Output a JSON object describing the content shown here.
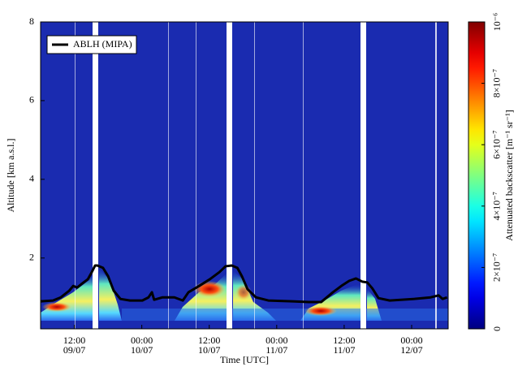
{
  "chart_data": {
    "type": "line",
    "x_label": "Time [UTC]",
    "y_label": "Altitude [km a.s.l.]",
    "colorbar_label": "Attenuated backscatter [m⁻¹ sr⁻¹]",
    "colormap": "jet",
    "clim": [
      0,
      1e-06
    ],
    "cticks": [
      0,
      {
        "value": 2e-07,
        "label": "2×10⁻⁷"
      },
      {
        "value": 4e-07,
        "label": "4×10⁻⁷"
      },
      {
        "value": 6e-07,
        "label": "6×10⁻⁷"
      },
      {
        "value": 8e-07,
        "label": "8×10⁻⁷"
      },
      {
        "value": 1e-06,
        "label": "10⁻⁶"
      }
    ],
    "xlim": [
      6,
      78.5
    ],
    "xticks": [
      {
        "value": 12,
        "label": "12:00\n09/07"
      },
      {
        "value": 24,
        "label": "00:00\n10/07"
      },
      {
        "value": 36,
        "label": "12:00\n10/07"
      },
      {
        "value": 48,
        "label": "00:00\n11/07"
      },
      {
        "value": 60,
        "label": "12:00\n11/07"
      },
      {
        "value": 72,
        "label": "00:00\n12/07"
      }
    ],
    "ylim": [
      0.2,
      8
    ],
    "yticks": [
      2,
      4,
      6,
      8
    ],
    "legend": "upper left",
    "series": [
      {
        "name": "ABLH (MIPA)",
        "color": "#000000",
        "x": [
          6.0,
          8.2,
          9.6,
          11.1,
          11.8,
          12.5,
          13.2,
          14.4,
          15.1,
          15.7,
          16.1,
          17.1,
          18.0,
          19.0,
          20.2,
          21.9,
          24.1,
          25.2,
          25.8,
          26.2,
          27.7,
          29.8,
          31.3,
          32.3,
          34.2,
          36.1,
          37.8,
          38.9,
          40.0,
          41.0,
          41.8,
          42.8,
          44.3,
          46.5,
          50.8,
          53.7,
          55.9,
          58.0,
          59.5,
          60.9,
          62.1,
          63.2,
          64.1,
          65.0,
          66.1,
          68.1,
          72.5,
          75.4,
          76.8,
          77.5,
          78.3
        ],
        "values": [
          0.9,
          0.92,
          1.0,
          1.17,
          1.29,
          1.25,
          1.33,
          1.46,
          1.64,
          1.81,
          1.81,
          1.75,
          1.54,
          1.17,
          0.96,
          0.92,
          0.92,
          1.0,
          1.13,
          0.94,
          1.0,
          1.0,
          0.92,
          1.13,
          1.29,
          1.46,
          1.64,
          1.79,
          1.81,
          1.75,
          1.54,
          1.21,
          1.0,
          0.92,
          0.9,
          0.88,
          0.88,
          1.13,
          1.29,
          1.42,
          1.48,
          1.4,
          1.38,
          1.23,
          0.98,
          0.92,
          0.96,
          1.0,
          1.05,
          0.96,
          1.0
        ]
      }
    ]
  }
}
